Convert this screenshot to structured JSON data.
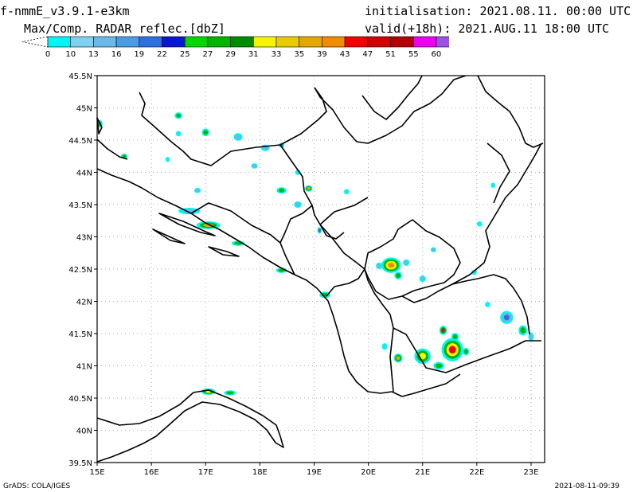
{
  "header": {
    "model": "f-nmmE_v3.9.1-e3km",
    "field": "Max/Comp. RADAR reflec.[dbZ]",
    "initialisation": "initialisation: 2021.08.11. 00:00 UTC",
    "valid": "valid(+18h): 2021.AUG.11 18:00 UTC"
  },
  "legend": {
    "unit": "dbZ",
    "ticks": [
      "0",
      "10",
      "13",
      "16",
      "19",
      "22",
      "25",
      "27",
      "29",
      "31",
      "33",
      "35",
      "39",
      "43",
      "47",
      "51",
      "55",
      "60"
    ],
    "colors": [
      "#00f5f5",
      "#7fd1f0",
      "#6ab9e6",
      "#4a9be0",
      "#2f6fe0",
      "#0a16d4",
      "#00d800",
      "#00b400",
      "#008c00",
      "#f5f500",
      "#e6cc00",
      "#e6a800",
      "#f08c00",
      "#f50000",
      "#d20000",
      "#b40000",
      "#f000f0",
      "#a050e0"
    ]
  },
  "axes": {
    "x_ticks": [
      "15E",
      "16E",
      "17E",
      "18E",
      "19E",
      "20E",
      "21E",
      "22E",
      "23E"
    ],
    "y_ticks": [
      "39.5N",
      "40N",
      "40.5N",
      "41N",
      "41.5N",
      "42N",
      "42.5N",
      "43N",
      "43.5N",
      "44N",
      "44.5N",
      "45N",
      "45.5N"
    ],
    "lon_range": [
      15,
      23.25
    ],
    "lat_range": [
      39.5,
      45.5
    ],
    "grid": true
  },
  "footer": {
    "left": "GrADS: COLA/IGES",
    "right": "2021-08-11-09:39"
  },
  "echoes": [
    {
      "lon": 20.42,
      "lat": 42.56,
      "rx": 0.18,
      "ry": 0.12,
      "levels": [
        "#00f5f5",
        "#00b400",
        "#f5f500",
        "#f08c00"
      ]
    },
    {
      "lon": 21.55,
      "lat": 41.25,
      "rx": 0.2,
      "ry": 0.18,
      "levels": [
        "#00f5f5",
        "#00b400",
        "#f5f500",
        "#f50000"
      ]
    },
    {
      "lon": 21.38,
      "lat": 41.55,
      "rx": 0.07,
      "ry": 0.07,
      "levels": [
        "#00f5f5",
        "#00b400",
        "#f50000"
      ]
    },
    {
      "lon": 21.0,
      "lat": 41.15,
      "rx": 0.15,
      "ry": 0.12,
      "levels": [
        "#00f5f5",
        "#00b400",
        "#f5f500"
      ]
    },
    {
      "lon": 20.55,
      "lat": 41.12,
      "rx": 0.08,
      "ry": 0.07,
      "levels": [
        "#00f5f5",
        "#00b400",
        "#e6a800"
      ]
    },
    {
      "lon": 21.3,
      "lat": 41.0,
      "rx": 0.1,
      "ry": 0.06,
      "levels": [
        "#00f5f5",
        "#00b400"
      ]
    },
    {
      "lon": 21.8,
      "lat": 41.22,
      "rx": 0.06,
      "ry": 0.06,
      "levels": [
        "#00f5f5",
        "#00b400"
      ]
    },
    {
      "lon": 21.6,
      "lat": 41.45,
      "rx": 0.07,
      "ry": 0.06,
      "levels": [
        "#00f5f5",
        "#00b400"
      ]
    },
    {
      "lon": 20.55,
      "lat": 42.4,
      "rx": 0.07,
      "ry": 0.06,
      "levels": [
        "#00f5f5",
        "#00b400"
      ]
    },
    {
      "lon": 20.7,
      "lat": 42.6,
      "rx": 0.06,
      "ry": 0.05,
      "levels": [
        "#00f5f5",
        "#6ab9e6"
      ]
    },
    {
      "lon": 20.2,
      "lat": 42.55,
      "rx": 0.06,
      "ry": 0.05,
      "levels": [
        "#00f5f5",
        "#6ab9e6"
      ]
    },
    {
      "lon": 21.2,
      "lat": 42.8,
      "rx": 0.05,
      "ry": 0.04,
      "levels": [
        "#00f5f5",
        "#6ab9e6"
      ]
    },
    {
      "lon": 21.0,
      "lat": 42.35,
      "rx": 0.06,
      "ry": 0.05,
      "levels": [
        "#00f5f5",
        "#6ab9e6"
      ]
    },
    {
      "lon": 17.05,
      "lat": 40.6,
      "rx": 0.13,
      "ry": 0.05,
      "levels": [
        "#00f5f5",
        "#00b400",
        "#f5f500"
      ]
    },
    {
      "lon": 17.45,
      "lat": 40.58,
      "rx": 0.11,
      "ry": 0.04,
      "levels": [
        "#00f5f5",
        "#00b400"
      ]
    },
    {
      "lon": 17.05,
      "lat": 43.18,
      "rx": 0.22,
      "ry": 0.06,
      "levels": [
        "#00f5f5",
        "#00b400",
        "#e6a800"
      ]
    },
    {
      "lon": 16.7,
      "lat": 43.4,
      "rx": 0.2,
      "ry": 0.05,
      "levels": [
        "#00f5f5",
        "#6ab9e6"
      ]
    },
    {
      "lon": 17.6,
      "lat": 42.9,
      "rx": 0.12,
      "ry": 0.04,
      "levels": [
        "#00f5f5",
        "#00b400"
      ]
    },
    {
      "lon": 18.4,
      "lat": 42.48,
      "rx": 0.1,
      "ry": 0.04,
      "levels": [
        "#00f5f5",
        "#00b400"
      ]
    },
    {
      "lon": 19.2,
      "lat": 42.1,
      "rx": 0.1,
      "ry": 0.05,
      "levels": [
        "#00f5f5",
        "#00b400"
      ]
    },
    {
      "lon": 15.05,
      "lat": 44.75,
      "rx": 0.05,
      "ry": 0.06,
      "levels": [
        "#00f5f5",
        "#00b400"
      ]
    },
    {
      "lon": 15.5,
      "lat": 44.25,
      "rx": 0.06,
      "ry": 0.04,
      "levels": [
        "#00f5f5",
        "#00b400"
      ]
    },
    {
      "lon": 16.5,
      "lat": 44.88,
      "rx": 0.07,
      "ry": 0.05,
      "levels": [
        "#00f5f5",
        "#00b400"
      ]
    },
    {
      "lon": 17.0,
      "lat": 44.62,
      "rx": 0.07,
      "ry": 0.06,
      "levels": [
        "#00f5f5",
        "#00b400"
      ]
    },
    {
      "lon": 16.85,
      "lat": 43.72,
      "rx": 0.06,
      "ry": 0.04,
      "levels": [
        "#00f5f5",
        "#6ab9e6"
      ]
    },
    {
      "lon": 17.6,
      "lat": 44.55,
      "rx": 0.08,
      "ry": 0.06,
      "levels": [
        "#00f5f5",
        "#6ab9e6"
      ]
    },
    {
      "lon": 18.1,
      "lat": 44.38,
      "rx": 0.08,
      "ry": 0.05,
      "levels": [
        "#00f5f5",
        "#6ab9e6"
      ]
    },
    {
      "lon": 18.4,
      "lat": 44.42,
      "rx": 0.05,
      "ry": 0.04,
      "levels": [
        "#00f5f5",
        "#2f6fe0"
      ]
    },
    {
      "lon": 18.4,
      "lat": 43.72,
      "rx": 0.09,
      "ry": 0.05,
      "levels": [
        "#00f5f5",
        "#00b400"
      ]
    },
    {
      "lon": 18.9,
      "lat": 43.75,
      "rx": 0.07,
      "ry": 0.05,
      "levels": [
        "#00f5f5",
        "#00b400",
        "#e6a800"
      ]
    },
    {
      "lon": 18.7,
      "lat": 43.5,
      "rx": 0.07,
      "ry": 0.05,
      "levels": [
        "#00f5f5",
        "#6ab9e6"
      ]
    },
    {
      "lon": 19.1,
      "lat": 43.1,
      "rx": 0.04,
      "ry": 0.05,
      "levels": [
        "#00f5f5",
        "#2f6fe0"
      ]
    },
    {
      "lon": 17.9,
      "lat": 44.1,
      "rx": 0.06,
      "ry": 0.04,
      "levels": [
        "#00f5f5",
        "#6ab9e6"
      ]
    },
    {
      "lon": 16.5,
      "lat": 44.6,
      "rx": 0.05,
      "ry": 0.04,
      "levels": [
        "#00f5f5"
      ]
    },
    {
      "lon": 16.3,
      "lat": 44.2,
      "rx": 0.04,
      "ry": 0.04,
      "levels": [
        "#00f5f5"
      ]
    },
    {
      "lon": 18.7,
      "lat": 44.0,
      "rx": 0.05,
      "ry": 0.04,
      "levels": [
        "#00f5f5"
      ]
    },
    {
      "lon": 19.6,
      "lat": 43.7,
      "rx": 0.05,
      "ry": 0.04,
      "levels": [
        "#00f5f5"
      ]
    },
    {
      "lon": 22.55,
      "lat": 41.75,
      "rx": 0.12,
      "ry": 0.1,
      "levels": [
        "#00f5f5",
        "#6ab9e6",
        "#2f6fe0"
      ]
    },
    {
      "lon": 22.85,
      "lat": 41.55,
      "rx": 0.08,
      "ry": 0.08,
      "levels": [
        "#00f5f5",
        "#00b400"
      ]
    },
    {
      "lon": 23.0,
      "lat": 41.45,
      "rx": 0.05,
      "ry": 0.07,
      "levels": [
        "#00f5f5",
        "#6ab9e6"
      ]
    },
    {
      "lon": 22.2,
      "lat": 41.95,
      "rx": 0.05,
      "ry": 0.04,
      "levels": [
        "#00f5f5"
      ]
    },
    {
      "lon": 21.95,
      "lat": 42.45,
      "rx": 0.05,
      "ry": 0.04,
      "levels": [
        "#00f5f5"
      ]
    },
    {
      "lon": 22.3,
      "lat": 43.8,
      "rx": 0.04,
      "ry": 0.04,
      "levels": [
        "#00f5f5"
      ]
    },
    {
      "lon": 22.05,
      "lat": 43.2,
      "rx": 0.05,
      "ry": 0.04,
      "levels": [
        "#00f5f5"
      ]
    },
    {
      "lon": 20.3,
      "lat": 41.3,
      "rx": 0.05,
      "ry": 0.05,
      "levels": [
        "#00f5f5"
      ]
    }
  ]
}
